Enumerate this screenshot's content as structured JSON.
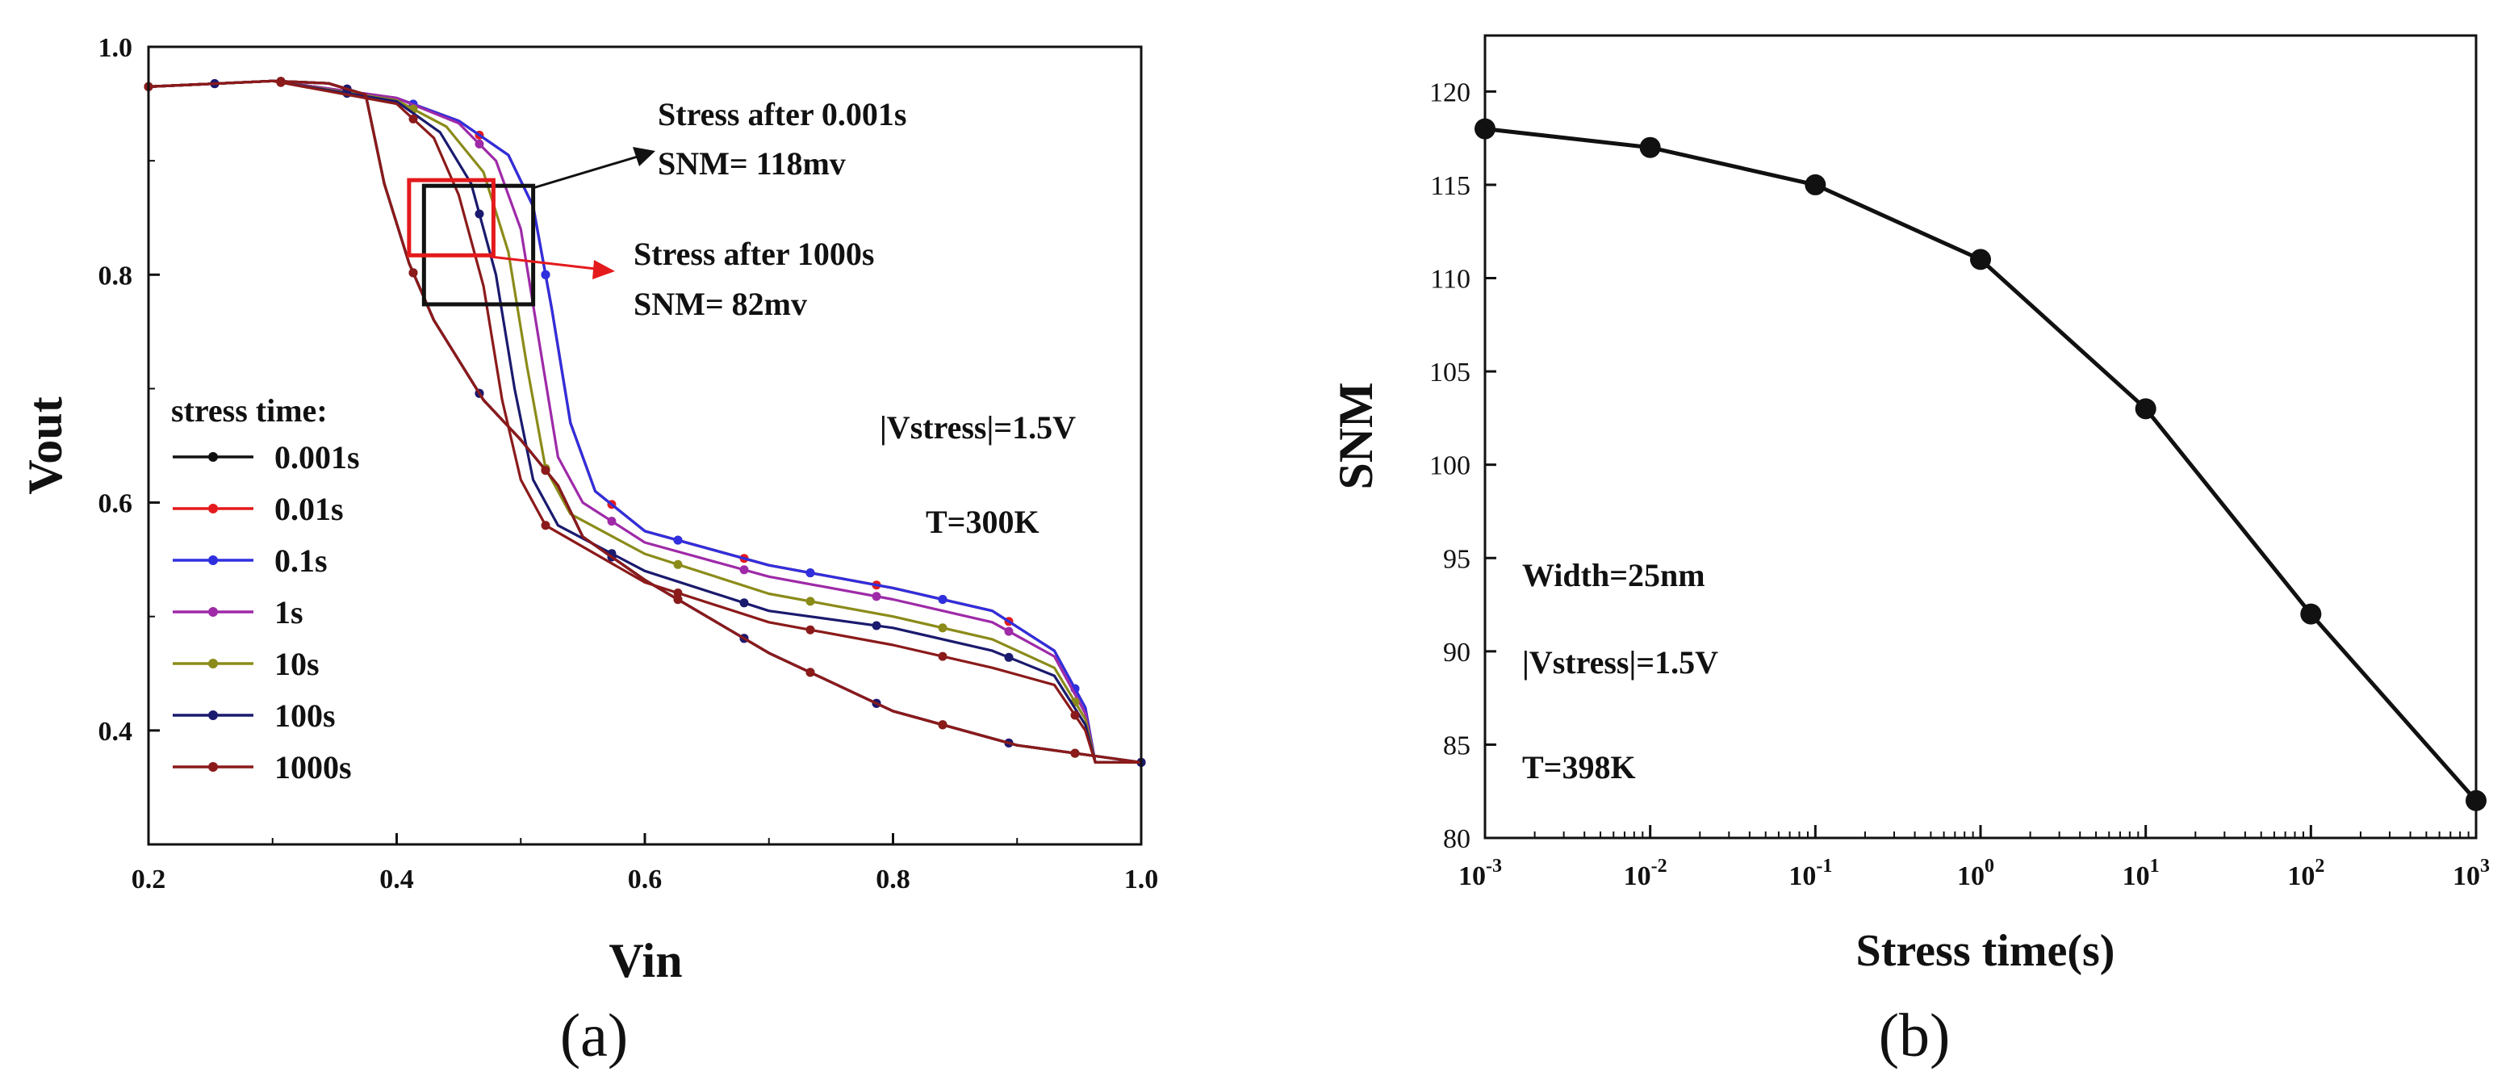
{
  "figure": {
    "colors": {
      "axis": "#111111",
      "background": "#ffffff"
    }
  },
  "chart_data": [
    {
      "type": "line",
      "panel_label": "(a)",
      "xlabel": "Vin",
      "ylabel": "Vout",
      "xlim": [
        0.2,
        1.0
      ],
      "ylim": [
        0.3,
        1.0
      ],
      "xticks": [
        "0.2",
        "0.4",
        "0.6",
        "0.8",
        "1.0"
      ],
      "yticks": [
        "0.4",
        "0.6",
        "0.8",
        "1.0"
      ],
      "xtick_values": [
        0.2,
        0.4,
        0.6,
        0.8,
        1.0
      ],
      "ytick_values": [
        0.4,
        0.6,
        0.8,
        1.0
      ],
      "legend_title": "stress time:",
      "legend_position": "lower-left",
      "series": [
        {
          "name": "0.001s",
          "color": "#111111",
          "forward": [
            [
              0.2,
              0.965
            ],
            [
              0.3,
              0.97
            ],
            [
              0.4,
              0.955
            ],
            [
              0.45,
              0.935
            ],
            [
              0.49,
              0.905
            ],
            [
              0.51,
              0.86
            ],
            [
              0.525,
              0.77
            ],
            [
              0.54,
              0.67
            ],
            [
              0.56,
              0.61
            ],
            [
              0.6,
              0.575
            ],
            [
              0.7,
              0.545
            ],
            [
              0.8,
              0.525
            ],
            [
              0.88,
              0.505
            ],
            [
              0.93,
              0.47
            ],
            [
              0.955,
              0.42
            ],
            [
              0.963,
              0.372
            ],
            [
              1.0,
              0.372
            ]
          ],
          "backward": [
            [
              0.2,
              0.965
            ],
            [
              0.3,
              0.97
            ],
            [
              0.345,
              0.968
            ],
            [
              0.375,
              0.958
            ],
            [
              0.39,
              0.88
            ],
            [
              0.41,
              0.81
            ],
            [
              0.43,
              0.76
            ],
            [
              0.47,
              0.69
            ],
            [
              0.5,
              0.655
            ],
            [
              0.53,
              0.615
            ],
            [
              0.55,
              0.57
            ],
            [
              0.6,
              0.532
            ],
            [
              0.7,
              0.468
            ],
            [
              0.8,
              0.417
            ],
            [
              0.9,
              0.387
            ],
            [
              1.0,
              0.372
            ]
          ]
        },
        {
          "name": "0.01s",
          "color": "#e41a1c",
          "forward": [
            [
              0.2,
              0.965
            ],
            [
              0.3,
              0.97
            ],
            [
              0.4,
              0.955
            ],
            [
              0.45,
              0.935
            ],
            [
              0.49,
              0.905
            ],
            [
              0.51,
              0.86
            ],
            [
              0.525,
              0.77
            ],
            [
              0.54,
              0.67
            ],
            [
              0.56,
              0.61
            ],
            [
              0.6,
              0.575
            ],
            [
              0.7,
              0.545
            ],
            [
              0.8,
              0.525
            ],
            [
              0.88,
              0.505
            ],
            [
              0.93,
              0.47
            ],
            [
              0.955,
              0.42
            ],
            [
              0.963,
              0.372
            ],
            [
              1.0,
              0.372
            ]
          ],
          "backward": [
            [
              0.2,
              0.965
            ],
            [
              0.3,
              0.97
            ],
            [
              0.345,
              0.968
            ],
            [
              0.375,
              0.958
            ],
            [
              0.39,
              0.88
            ],
            [
              0.41,
              0.81
            ],
            [
              0.43,
              0.76
            ],
            [
              0.47,
              0.69
            ],
            [
              0.5,
              0.655
            ],
            [
              0.53,
              0.615
            ],
            [
              0.55,
              0.57
            ],
            [
              0.6,
              0.532
            ],
            [
              0.7,
              0.468
            ],
            [
              0.8,
              0.417
            ],
            [
              0.9,
              0.387
            ],
            [
              1.0,
              0.372
            ]
          ]
        },
        {
          "name": "0.1s",
          "color": "#2f2fe0",
          "forward": [
            [
              0.2,
              0.965
            ],
            [
              0.3,
              0.97
            ],
            [
              0.4,
              0.955
            ],
            [
              0.45,
              0.935
            ],
            [
              0.49,
              0.905
            ],
            [
              0.51,
              0.86
            ],
            [
              0.525,
              0.77
            ],
            [
              0.54,
              0.67
            ],
            [
              0.56,
              0.61
            ],
            [
              0.6,
              0.575
            ],
            [
              0.7,
              0.545
            ],
            [
              0.8,
              0.525
            ],
            [
              0.88,
              0.505
            ],
            [
              0.93,
              0.47
            ],
            [
              0.955,
              0.42
            ],
            [
              0.963,
              0.372
            ],
            [
              1.0,
              0.372
            ]
          ],
          "backward": [
            [
              0.2,
              0.965
            ],
            [
              0.3,
              0.97
            ],
            [
              0.345,
              0.968
            ],
            [
              0.375,
              0.958
            ],
            [
              0.39,
              0.88
            ],
            [
              0.41,
              0.81
            ],
            [
              0.43,
              0.76
            ],
            [
              0.47,
              0.69
            ],
            [
              0.5,
              0.655
            ],
            [
              0.53,
              0.615
            ],
            [
              0.55,
              0.57
            ],
            [
              0.6,
              0.532
            ],
            [
              0.7,
              0.468
            ],
            [
              0.8,
              0.417
            ],
            [
              0.9,
              0.387
            ],
            [
              1.0,
              0.372
            ]
          ]
        },
        {
          "name": "1s",
          "color": "#9e2aa8",
          "forward": [
            [
              0.2,
              0.965
            ],
            [
              0.3,
              0.97
            ],
            [
              0.4,
              0.955
            ],
            [
              0.45,
              0.933
            ],
            [
              0.48,
              0.9
            ],
            [
              0.5,
              0.84
            ],
            [
              0.515,
              0.74
            ],
            [
              0.53,
              0.64
            ],
            [
              0.55,
              0.6
            ],
            [
              0.6,
              0.565
            ],
            [
              0.7,
              0.535
            ],
            [
              0.8,
              0.515
            ],
            [
              0.88,
              0.495
            ],
            [
              0.93,
              0.465
            ],
            [
              0.955,
              0.415
            ],
            [
              0.963,
              0.372
            ],
            [
              1.0,
              0.372
            ]
          ],
          "backward": [
            [
              0.2,
              0.965
            ],
            [
              0.3,
              0.97
            ],
            [
              0.345,
              0.968
            ],
            [
              0.375,
              0.958
            ],
            [
              0.39,
              0.88
            ],
            [
              0.41,
              0.81
            ],
            [
              0.43,
              0.76
            ],
            [
              0.47,
              0.69
            ],
            [
              0.5,
              0.655
            ],
            [
              0.53,
              0.615
            ],
            [
              0.55,
              0.57
            ],
            [
              0.6,
              0.532
            ],
            [
              0.7,
              0.468
            ],
            [
              0.8,
              0.417
            ],
            [
              0.9,
              0.387
            ],
            [
              1.0,
              0.372
            ]
          ]
        },
        {
          "name": "10s",
          "color": "#8b8b1a",
          "forward": [
            [
              0.2,
              0.965
            ],
            [
              0.3,
              0.97
            ],
            [
              0.4,
              0.953
            ],
            [
              0.44,
              0.93
            ],
            [
              0.47,
              0.89
            ],
            [
              0.49,
              0.82
            ],
            [
              0.505,
              0.72
            ],
            [
              0.52,
              0.63
            ],
            [
              0.54,
              0.59
            ],
            [
              0.6,
              0.555
            ],
            [
              0.7,
              0.52
            ],
            [
              0.8,
              0.5
            ],
            [
              0.88,
              0.48
            ],
            [
              0.93,
              0.455
            ],
            [
              0.955,
              0.41
            ],
            [
              0.963,
              0.372
            ],
            [
              1.0,
              0.372
            ]
          ],
          "backward": [
            [
              0.2,
              0.965
            ],
            [
              0.3,
              0.97
            ],
            [
              0.345,
              0.968
            ],
            [
              0.375,
              0.958
            ],
            [
              0.39,
              0.88
            ],
            [
              0.41,
              0.81
            ],
            [
              0.43,
              0.76
            ],
            [
              0.47,
              0.69
            ],
            [
              0.5,
              0.655
            ],
            [
              0.53,
              0.615
            ],
            [
              0.55,
              0.57
            ],
            [
              0.6,
              0.532
            ],
            [
              0.7,
              0.468
            ],
            [
              0.8,
              0.417
            ],
            [
              0.9,
              0.387
            ],
            [
              1.0,
              0.372
            ]
          ]
        },
        {
          "name": "100s",
          "color": "#1a1a6e",
          "forward": [
            [
              0.2,
              0.965
            ],
            [
              0.3,
              0.97
            ],
            [
              0.4,
              0.952
            ],
            [
              0.435,
              0.925
            ],
            [
              0.46,
              0.88
            ],
            [
              0.48,
              0.8
            ],
            [
              0.495,
              0.7
            ],
            [
              0.51,
              0.62
            ],
            [
              0.53,
              0.58
            ],
            [
              0.6,
              0.54
            ],
            [
              0.7,
              0.505
            ],
            [
              0.8,
              0.49
            ],
            [
              0.88,
              0.47
            ],
            [
              0.93,
              0.448
            ],
            [
              0.955,
              0.405
            ],
            [
              0.963,
              0.372
            ],
            [
              1.0,
              0.372
            ]
          ],
          "backward": [
            [
              0.2,
              0.965
            ],
            [
              0.3,
              0.97
            ],
            [
              0.345,
              0.968
            ],
            [
              0.375,
              0.958
            ],
            [
              0.39,
              0.88
            ],
            [
              0.41,
              0.81
            ],
            [
              0.43,
              0.76
            ],
            [
              0.47,
              0.69
            ],
            [
              0.5,
              0.655
            ],
            [
              0.53,
              0.615
            ],
            [
              0.55,
              0.57
            ],
            [
              0.6,
              0.532
            ],
            [
              0.7,
              0.468
            ],
            [
              0.8,
              0.417
            ],
            [
              0.9,
              0.387
            ],
            [
              1.0,
              0.372
            ]
          ]
        },
        {
          "name": "1000s",
          "color": "#8b1a1a",
          "forward": [
            [
              0.2,
              0.965
            ],
            [
              0.3,
              0.97
            ],
            [
              0.4,
              0.95
            ],
            [
              0.43,
              0.92
            ],
            [
              0.45,
              0.87
            ],
            [
              0.47,
              0.79
            ],
            [
              0.485,
              0.69
            ],
            [
              0.5,
              0.62
            ],
            [
              0.52,
              0.58
            ],
            [
              0.6,
              0.53
            ],
            [
              0.7,
              0.495
            ],
            [
              0.8,
              0.475
            ],
            [
              0.88,
              0.455
            ],
            [
              0.93,
              0.44
            ],
            [
              0.955,
              0.4
            ],
            [
              0.963,
              0.372
            ],
            [
              1.0,
              0.372
            ]
          ],
          "backward": [
            [
              0.2,
              0.965
            ],
            [
              0.3,
              0.97
            ],
            [
              0.345,
              0.968
            ],
            [
              0.375,
              0.958
            ],
            [
              0.39,
              0.88
            ],
            [
              0.41,
              0.81
            ],
            [
              0.43,
              0.76
            ],
            [
              0.47,
              0.69
            ],
            [
              0.5,
              0.655
            ],
            [
              0.53,
              0.615
            ],
            [
              0.55,
              0.57
            ],
            [
              0.6,
              0.532
            ],
            [
              0.7,
              0.468
            ],
            [
              0.8,
              0.417
            ],
            [
              0.9,
              0.387
            ],
            [
              1.0,
              0.372
            ]
          ]
        }
      ],
      "snm_boxes": [
        {
          "name": "black-box",
          "color": "#111111",
          "x": [
            0.422,
            0.51
          ],
          "y": [
            0.774,
            0.878
          ]
        },
        {
          "name": "red-box",
          "color": "#e41a1c",
          "x": [
            0.41,
            0.478
          ],
          "y": [
            0.817,
            0.883
          ]
        }
      ],
      "annotations": [
        {
          "text1": "Stress after 0.001s",
          "text2": "SNM= 118mv",
          "color": "#111111"
        },
        {
          "text1": "Stress after 1000s",
          "text2": "SNM= 82mv",
          "color": "#e41a1c"
        },
        {
          "text": "|Vstress|=1.5V"
        },
        {
          "text": "T=300K"
        }
      ]
    },
    {
      "type": "line",
      "panel_label": "(b)",
      "xlabel": "Stress time(s)",
      "ylabel": "SNM",
      "xscale": "log",
      "x": [
        0.001,
        0.01,
        0.1,
        1,
        10,
        100,
        1000
      ],
      "values": [
        118,
        117,
        115,
        111,
        103,
        92,
        82
      ],
      "xlim": [
        0.001,
        1000
      ],
      "ylim": [
        80,
        123
      ],
      "xticks": [
        {
          "base": "10",
          "exp": "-3"
        },
        {
          "base": "10",
          "exp": "-2"
        },
        {
          "base": "10",
          "exp": "-1"
        },
        {
          "base": "10",
          "exp": "0"
        },
        {
          "base": "10",
          "exp": "1"
        },
        {
          "base": "10",
          "exp": "2"
        },
        {
          "base": "10",
          "exp": "3"
        }
      ],
      "yticks": [
        "80",
        "85",
        "90",
        "95",
        "100",
        "105",
        "110",
        "115",
        "120"
      ],
      "ytick_values": [
        80,
        85,
        90,
        95,
        100,
        105,
        110,
        115,
        120
      ],
      "annotations": [
        {
          "text": "Width=25nm"
        },
        {
          "text": "|Vstress|=1.5V"
        },
        {
          "text": "T=398K"
        }
      ]
    }
  ]
}
